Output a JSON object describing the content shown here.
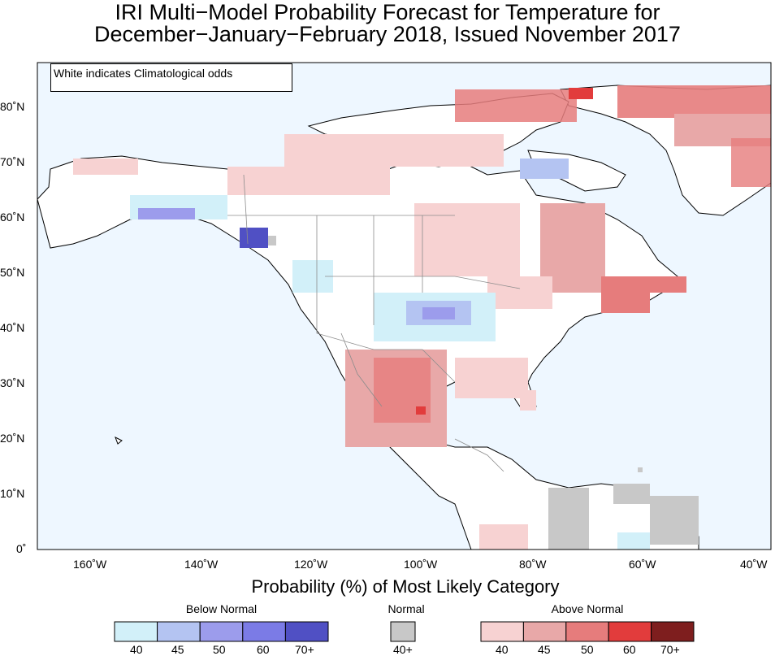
{
  "title_line1": "IRI Multi−Model Probability Forecast for Temperature for",
  "title_line2": "December−January−February 2018, Issued November 2017",
  "note": "White indicates Climatological odds",
  "axes": {
    "lon_labels": [
      "160˚W",
      "140˚W",
      "120˚W",
      "100˚W",
      "80˚W",
      "60˚W",
      "40˚W"
    ],
    "lat_labels": [
      "0˚",
      "10˚N",
      "20˚N",
      "30˚N",
      "40˚N",
      "50˚N",
      "60˚N",
      "70˚N",
      "80˚N"
    ]
  },
  "legend": {
    "title": "Probability (%) of Most Likely Category",
    "below": {
      "label": "Below Normal",
      "ticks": [
        "40",
        "45",
        "50",
        "60",
        "70+"
      ],
      "colors": [
        "#d2f0f9",
        "#b4c4f2",
        "#9c9cec",
        "#7b7be6",
        "#5050c4"
      ]
    },
    "normal": {
      "label": "Normal",
      "ticks": [
        "40+"
      ],
      "colors": [
        "#c8c8c8"
      ]
    },
    "above": {
      "label": "Above Normal",
      "ticks": [
        "40",
        "45",
        "50",
        "60",
        "70+"
      ],
      "colors": [
        "#f7d2d2",
        "#e8a8a8",
        "#e67c7c",
        "#e23c3c",
        "#7e1e1e"
      ]
    }
  },
  "colors": {
    "ocean": "#eef7ff",
    "land": "#ffffff",
    "coast": "#000000",
    "border": "#8c8c8c"
  }
}
